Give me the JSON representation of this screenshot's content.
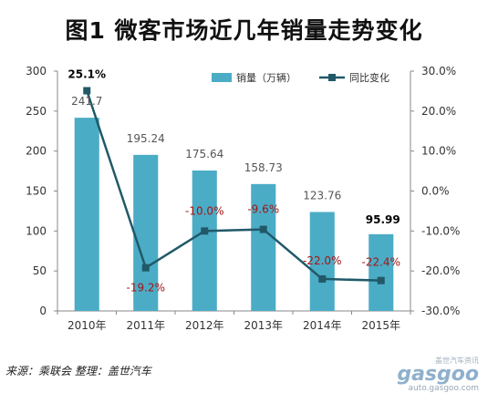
{
  "title": "图1  微客市场近几年销量走势变化",
  "source_note": "来源：乘联会  整理：盖世汽车",
  "watermark": {
    "tag": "盖世汽车资讯",
    "logo": "gasgoo",
    "url": "auto.gasgoo.com"
  },
  "colors": {
    "bar": "#4bacc6",
    "line": "#215968",
    "neg_label": "#a31515"
  },
  "chart_data": {
    "type": "bar",
    "categories": [
      "2010年",
      "2011年",
      "2012年",
      "2013年",
      "2014年",
      "2015年"
    ],
    "series": [
      {
        "name": "销量（万辆）",
        "type": "bar",
        "axis": "left",
        "values": [
          241.7,
          195.24,
          175.64,
          158.73,
          123.76,
          95.99
        ],
        "labels": [
          "241.7",
          "195.24",
          "175.64",
          "158.73",
          "123.76",
          "95.99"
        ]
      },
      {
        "name": "同比变化",
        "type": "line",
        "axis": "right",
        "values": [
          25.1,
          -19.2,
          -10.0,
          -9.6,
          -22.0,
          -22.4
        ],
        "labels": [
          "25.1%",
          "-19.2%",
          "-10.0%",
          "-9.6%",
          "-22.0%",
          "-22.4%"
        ]
      }
    ],
    "y_left": {
      "min": 0,
      "max": 300,
      "ticks": [
        "0",
        "50",
        "100",
        "150",
        "200",
        "250",
        "300"
      ]
    },
    "y_right": {
      "min": -30,
      "max": 30,
      "ticks": [
        "-30.0%",
        "-20.0%",
        "-10.0%",
        "0.0%",
        "10.0%",
        "20.0%",
        "30.0%"
      ]
    },
    "legend_position": "top-right",
    "grid": false
  }
}
